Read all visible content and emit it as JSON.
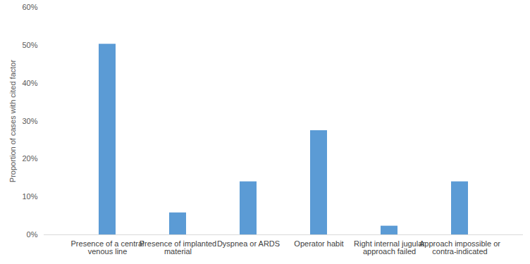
{
  "chart_data": {
    "type": "bar",
    "y_label": "Proportion of cases with cited factor",
    "categories": [
      "Presence of a central venous line",
      "Presence of implanted material",
      "Dyspnea or ARDS",
      "Operator habit",
      "Right internal jugular approach failed",
      "Approach impossible or contra-indicated"
    ],
    "values": [
      50.3,
      5.8,
      14,
      27.5,
      2.3,
      14
    ],
    "color": "#5b9bd5",
    "ylim": [
      0,
      60
    ],
    "yticks": [
      {
        "value": 0,
        "label": "0%"
      },
      {
        "value": 10,
        "label": "10%"
      },
      {
        "value": 20,
        "label": "20%"
      },
      {
        "value": 30,
        "label": "30%"
      },
      {
        "value": 40,
        "label": "40%"
      },
      {
        "value": 50,
        "label": "50%"
      },
      {
        "value": 60,
        "label": "60%"
      }
    ],
    "grid": false
  }
}
